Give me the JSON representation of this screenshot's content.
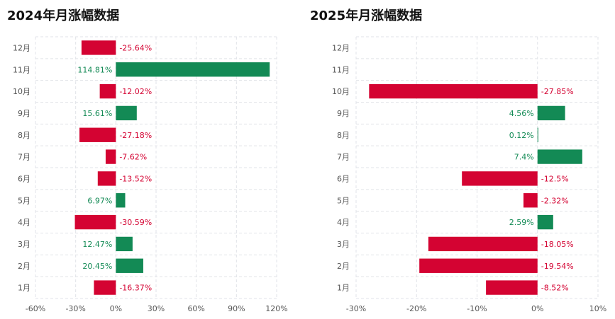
{
  "colors": {
    "positive": "#138a55",
    "negative": "#d40332",
    "grid": "#e1e3e8",
    "text": "#555555"
  },
  "chart_data": [
    {
      "type": "bar",
      "orientation": "horizontal",
      "title": "2024年月涨幅数据",
      "categories": [
        "1月",
        "2月",
        "3月",
        "4月",
        "5月",
        "6月",
        "7月",
        "8月",
        "9月",
        "10月",
        "11月",
        "12月"
      ],
      "values": [
        -16.37,
        20.45,
        12.47,
        -30.59,
        6.97,
        -13.52,
        -7.62,
        -27.18,
        15.61,
        -12.02,
        114.81,
        -25.64
      ],
      "value_labels": [
        "-16.37%",
        "20.45%",
        "12.47%",
        "-30.59%",
        "6.97%",
        "-13.52%",
        "-7.62%",
        "-27.18%",
        "15.61%",
        "-12.02%",
        "114.81%",
        "-25.64%"
      ],
      "xlim": [
        -60,
        120
      ],
      "xticks": [
        -60,
        -30,
        0,
        30,
        60,
        90,
        120
      ],
      "xtick_labels": [
        "-60%",
        "-30%",
        "0%",
        "30%",
        "60%",
        "90%",
        "120%"
      ],
      "grid": true
    },
    {
      "type": "bar",
      "orientation": "horizontal",
      "title": "2025年月涨幅数据",
      "categories": [
        "1月",
        "2月",
        "3月",
        "4月",
        "5月",
        "6月",
        "7月",
        "8月",
        "9月",
        "10月",
        "11月",
        "12月"
      ],
      "values": [
        -8.52,
        -19.54,
        -18.05,
        2.59,
        -2.32,
        -12.5,
        7.4,
        0.12,
        4.56,
        -27.85,
        null,
        null
      ],
      "value_labels": [
        "-8.52%",
        "-19.54%",
        "-18.05%",
        "2.59%",
        "-2.32%",
        "-12.5%",
        "7.4%",
        "0.12%",
        "4.56%",
        "-27.85%",
        "",
        ""
      ],
      "xlim": [
        -30,
        10
      ],
      "xticks": [
        -30,
        -20,
        -10,
        0,
        10
      ],
      "xtick_labels": [
        "-30%",
        "-20%",
        "-10%",
        "0%",
        "10%"
      ],
      "grid": true
    }
  ]
}
